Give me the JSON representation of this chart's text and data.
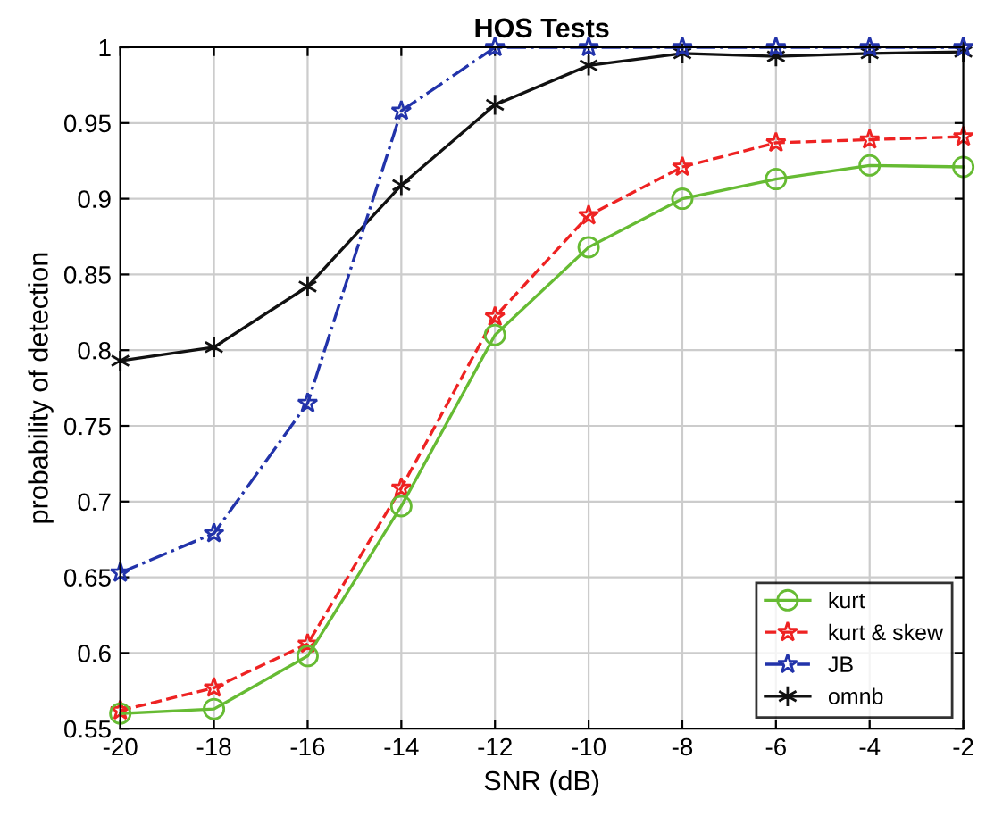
{
  "chart_data": {
    "type": "line",
    "title": "HOS Tests",
    "xlabel": "SNR (dB)",
    "ylabel": "probability of detection",
    "x": [
      -20,
      -18,
      -16,
      -14,
      -12,
      -10,
      -8,
      -6,
      -4,
      -2
    ],
    "series": [
      {
        "name": "kurt",
        "color": "#66bb33",
        "marker": "circle",
        "line_style": "solid",
        "values": [
          0.56,
          0.563,
          0.598,
          0.697,
          0.81,
          0.868,
          0.9,
          0.913,
          0.922,
          0.921
        ]
      },
      {
        "name": "kurt & skew",
        "color": "#ee2222",
        "marker": "star",
        "line_style": "dashed",
        "values": [
          0.562,
          0.577,
          0.606,
          0.709,
          0.822,
          0.889,
          0.921,
          0.937,
          0.939,
          0.941
        ]
      },
      {
        "name": "JB",
        "color": "#2233aa",
        "marker": "star",
        "line_style": "dashdot",
        "values": [
          0.653,
          0.679,
          0.765,
          0.958,
          1.0,
          1.0,
          1.0,
          1.0,
          1.0,
          1.0
        ]
      },
      {
        "name": "omnb",
        "color": "#111111",
        "marker": "cross",
        "line_style": "solid",
        "values": [
          0.793,
          0.802,
          0.842,
          0.909,
          0.962,
          0.988,
          0.996,
          0.994,
          0.996,
          0.997
        ]
      }
    ],
    "xlim": [
      -20,
      -2
    ],
    "xticks": [
      -20,
      -18,
      -16,
      -14,
      -12,
      -10,
      -8,
      -6,
      -4,
      -2
    ],
    "ylim": [
      0.55,
      1
    ],
    "yticks": [
      0.55,
      0.6,
      0.65,
      0.7,
      0.75,
      0.8,
      0.85,
      0.9,
      0.95,
      1
    ],
    "grid": true,
    "legend": "bottom right"
  }
}
